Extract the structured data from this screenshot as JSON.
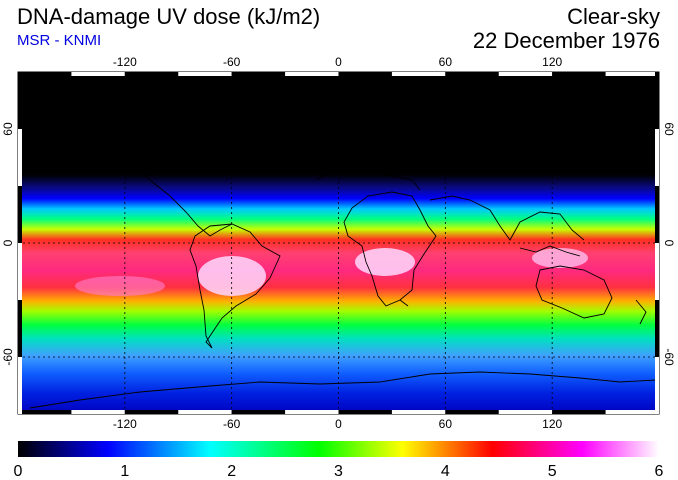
{
  "header": {
    "title": "DNA-damage UV dose (kJ/m2)",
    "subtitle": "MSR - KNMI",
    "sky_condition": "Clear-sky",
    "date": "22 December 1976"
  },
  "map": {
    "longitude_labels": [
      "-120",
      "-60",
      "0",
      "60",
      "120"
    ],
    "longitude_values": [
      -120,
      -60,
      0,
      60,
      120
    ],
    "latitude_labels": [
      "60",
      "0",
      "-60"
    ],
    "latitude_values": [
      60,
      0,
      -60
    ],
    "extent": {
      "lon_min": -180,
      "lon_max": 180,
      "lat_min": -90,
      "lat_max": 90
    }
  },
  "colorbar": {
    "min": 0,
    "max": 6,
    "tick_labels": [
      "0",
      "1",
      "2",
      "3",
      "4",
      "5",
      "6"
    ],
    "colors": [
      "#000000",
      "#0000ff",
      "#00ffff",
      "#00ff00",
      "#ffff00",
      "#ff0000",
      "#ff00ff",
      "#ffffff"
    ]
  }
}
